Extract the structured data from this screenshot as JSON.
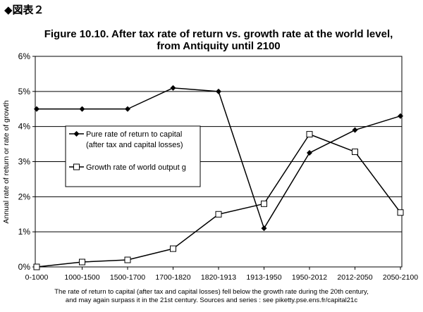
{
  "header_label": "◆図表２",
  "chart_data": {
    "type": "line",
    "title": [
      "Figure 10.10. After tax rate of return vs. growth rate at the world level,",
      "from Antiquity until 2100"
    ],
    "ylabel": "Annual rate of return or rate of growth",
    "xlabel": "",
    "categories": [
      "0-1000",
      "1000-1500",
      "1500-1700",
      "1700-1820",
      "1820-1913",
      "1913-1950",
      "1950-2012",
      "2012-2050",
      "2050-2100"
    ],
    "ylim": [
      0,
      6
    ],
    "yticks": [
      0,
      1,
      2,
      3,
      4,
      5,
      6
    ],
    "ytick_labels": [
      "0%",
      "1%",
      "2%",
      "3%",
      "4%",
      "5%",
      "6%"
    ],
    "grid": true,
    "legend_position": "middle-left",
    "series": [
      {
        "name": "Pure rate of return to capital (after tax and capital losses)",
        "legend_lines": [
          "Pure rate of return to capital",
          "(after tax and capital losses)"
        ],
        "marker": "filled-diamond",
        "color": "#000000",
        "values": [
          4.5,
          4.5,
          4.5,
          5.1,
          5.0,
          1.1,
          3.25,
          3.9,
          4.3
        ]
      },
      {
        "name": "Growth rate of world output g",
        "legend_lines": [
          "Growth rate of world output g"
        ],
        "marker": "open-square",
        "color": "#000000",
        "values": [
          0.0,
          0.14,
          0.2,
          0.52,
          1.5,
          1.8,
          3.78,
          3.28,
          1.55
        ]
      }
    ]
  },
  "footnote": [
    "The rate of return to capital (after tax and capital losses) fell below the growth rate during the 20th century,",
    "and may again surpass it in the 21st century. Sources and series : see piketty.pse.ens.fr/capital21c"
  ]
}
